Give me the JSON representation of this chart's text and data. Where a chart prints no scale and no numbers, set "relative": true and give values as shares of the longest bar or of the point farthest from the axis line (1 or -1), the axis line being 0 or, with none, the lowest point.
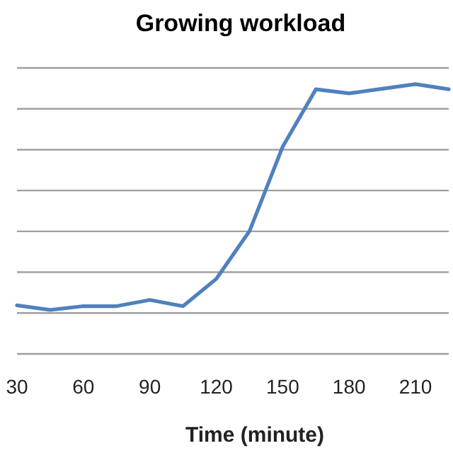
{
  "chart_data": {
    "type": "line",
    "title": "Growing workload",
    "xlabel": "Time (minute)",
    "relative": true,
    "grid": "y",
    "marker": "none",
    "line_style": "solid",
    "x": [
      30,
      45,
      60,
      75,
      90,
      105,
      120,
      135,
      150,
      165,
      180,
      195,
      210,
      225
    ],
    "xlim": [
      30,
      225
    ],
    "xticks": [
      30,
      60,
      90,
      120,
      150,
      180,
      210
    ],
    "series": [
      {
        "color": "#4f81bd",
        "values": [
          0.18,
          0.163,
          0.177,
          0.177,
          0.2,
          0.177,
          0.278,
          0.455,
          0.768,
          0.981,
          0.966,
          0.983,
          1,
          0.981
        ]
      }
    ]
  }
}
